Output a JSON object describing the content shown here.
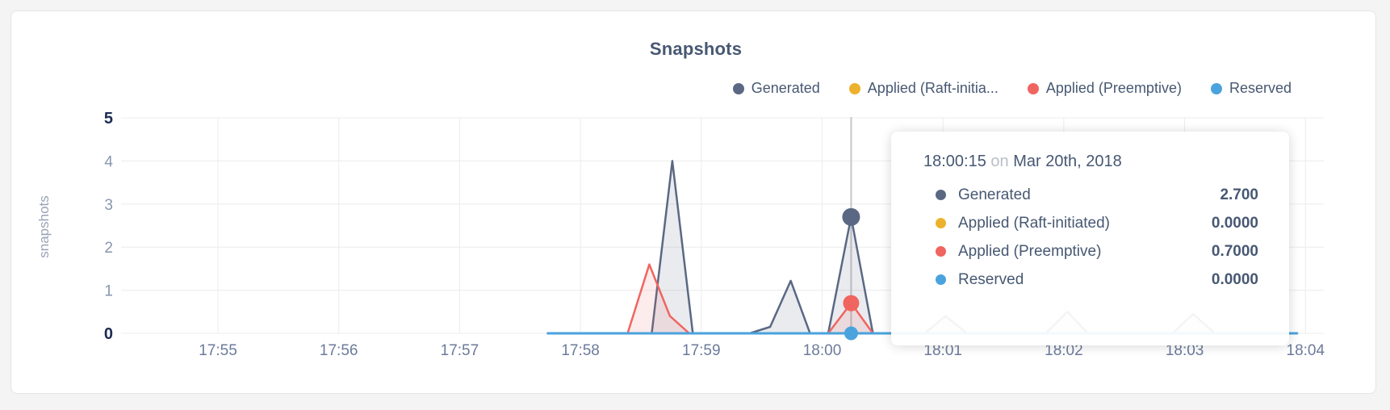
{
  "page": {
    "background": "#f4f4f5",
    "panel_border": "#e3e4e6"
  },
  "chart_data": {
    "type": "area",
    "title": "Snapshots",
    "ylabel": "snapshots",
    "x_ticks": [
      "17:55",
      "17:56",
      "17:57",
      "17:58",
      "17:59",
      "18:00",
      "18:01",
      "18:02",
      "18:03",
      "18:04"
    ],
    "y_ticks": [
      0,
      1,
      2,
      3,
      4,
      5
    ],
    "ylim": [
      0,
      5
    ],
    "grid": true,
    "legend_position": "top-right",
    "x_note": "x values in series points are minutes after 17:55",
    "series": [
      {
        "name": "Generated",
        "color": "#5a6884",
        "fill": "rgba(90,104,132,0.13)",
        "stroke_width": 2.5,
        "points": [
          [
            2.73,
            0
          ],
          [
            3.59,
            0
          ],
          [
            3.76,
            4.0
          ],
          [
            3.93,
            0
          ],
          [
            4.4,
            0
          ],
          [
            4.57,
            0.15
          ],
          [
            4.74,
            1.22
          ],
          [
            4.9,
            0
          ],
          [
            5.05,
            0
          ],
          [
            5.24,
            2.7
          ],
          [
            5.42,
            0
          ],
          [
            5.85,
            0
          ],
          [
            6.02,
            0.4
          ],
          [
            6.2,
            0
          ],
          [
            6.85,
            0
          ],
          [
            7.03,
            0.5
          ],
          [
            7.2,
            0
          ],
          [
            7.9,
            0
          ],
          [
            8.07,
            0.45
          ],
          [
            8.25,
            0
          ],
          [
            8.93,
            0
          ]
        ]
      },
      {
        "name": "Applied (Raft-initiated)",
        "color": "#ecb22e",
        "fill": "none",
        "stroke_width": 2.5,
        "points": [
          [
            2.73,
            0
          ],
          [
            8.93,
            0
          ]
        ]
      },
      {
        "name": "Applied (Preemptive)",
        "color": "#f0655f",
        "fill": "rgba(240,101,95,0.12)",
        "stroke_width": 2.5,
        "points": [
          [
            2.73,
            0
          ],
          [
            3.39,
            0
          ],
          [
            3.57,
            1.6
          ],
          [
            3.74,
            0.4
          ],
          [
            3.9,
            0
          ],
          [
            5.05,
            0
          ],
          [
            5.24,
            0.7
          ],
          [
            5.42,
            0
          ],
          [
            8.93,
            0
          ]
        ]
      },
      {
        "name": "Reserved",
        "color": "#4aa3dd",
        "fill": "none",
        "stroke_width": 3,
        "points": [
          [
            2.73,
            0
          ],
          [
            8.93,
            0
          ]
        ]
      }
    ],
    "hover": {
      "t": 5.24,
      "time_label": "18:00:15",
      "dots": [
        {
          "series": "Generated",
          "value": 2.7,
          "r": 11
        },
        {
          "series": "Applied (Raft-initiated)",
          "value": 0,
          "r": 8
        },
        {
          "series": "Applied (Preemptive)",
          "value": 0.7,
          "r": 10
        },
        {
          "series": "Reserved",
          "value": 0,
          "r": 8.5
        }
      ]
    }
  },
  "legend": {
    "items": [
      {
        "label": "Generated",
        "color": "#5a6884"
      },
      {
        "label": "Applied (Raft-initia...",
        "color": "#ecb22e"
      },
      {
        "label": "Applied (Preemptive)",
        "color": "#f0655f"
      },
      {
        "label": "Reserved",
        "color": "#4aa3dd"
      }
    ]
  },
  "tooltip": {
    "time": "18:00:15",
    "conjunction": "on",
    "date": "Mar 20th, 2018",
    "rows": [
      {
        "label": "Generated",
        "value": "2.700",
        "color": "#5a6884"
      },
      {
        "label": "Applied (Raft-initiated)",
        "value": "0.0000",
        "color": "#ecb22e"
      },
      {
        "label": "Applied (Preemptive)",
        "value": "0.7000",
        "color": "#f0655f"
      },
      {
        "label": "Reserved",
        "value": "0.0000",
        "color": "#4aa3dd"
      }
    ]
  },
  "style": {
    "gridline_color": "#ececec",
    "guideline_color": "#c7c7c7",
    "tick_label_color": "#8996af",
    "tick_label_bold_color": "#1c2b52",
    "x_label_color": "#6c7b9b",
    "text_color": "#475872"
  }
}
